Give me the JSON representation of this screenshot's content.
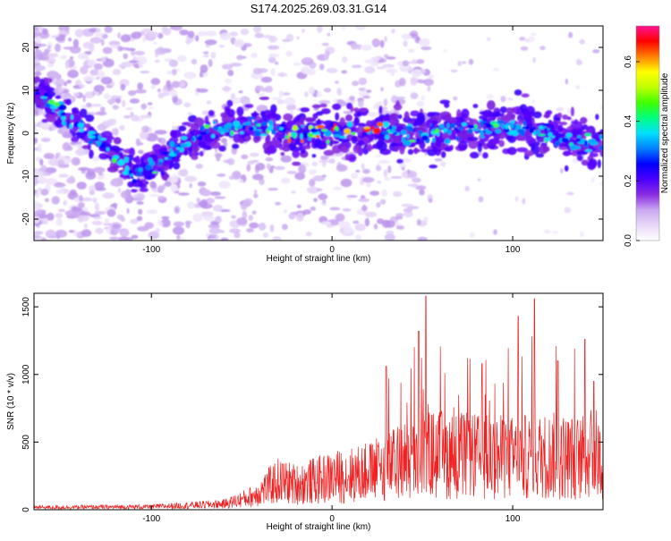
{
  "chart_data": [
    {
      "type": "heatmap",
      "title": "S174.2025.269.03.31.G14",
      "xlabel": "Height of straight line (km)",
      "ylabel": "Frequency (Hz)",
      "xlim": [
        -165,
        150
      ],
      "ylim": [
        -25,
        25
      ],
      "xticks": [
        -100,
        0,
        100
      ],
      "yticks": [
        -20,
        -10,
        0,
        10,
        20
      ],
      "colorbar": {
        "label": "Normalized spectral amplitude",
        "range": [
          0,
          0.72
        ],
        "ticks": [
          "0.0",
          "0.2",
          "0.4",
          "0.6"
        ],
        "colors": [
          "#ffffff",
          "#e8d8f8",
          "#c9a8f0",
          "#8a2be2",
          "#4b00ff",
          "#0000ff",
          "#0080ff",
          "#00e0ff",
          "#00ff80",
          "#40ff00",
          "#c0ff00",
          "#ffff00",
          "#ff8000",
          "#ff0000",
          "#ff1493"
        ]
      },
      "ridge": [
        {
          "x": -165,
          "y": 10
        },
        {
          "x": -150,
          "y": 5
        },
        {
          "x": -135,
          "y": 0
        },
        {
          "x": -120,
          "y": -5
        },
        {
          "x": -110,
          "y": -10
        },
        {
          "x": -100,
          "y": -8
        },
        {
          "x": -90,
          "y": -5
        },
        {
          "x": -80,
          "y": -2
        },
        {
          "x": -70,
          "y": 0
        },
        {
          "x": -55,
          "y": 2
        },
        {
          "x": -40,
          "y": 1
        },
        {
          "x": -20,
          "y": 0
        },
        {
          "x": 0,
          "y": 0
        },
        {
          "x": 20,
          "y": 1
        },
        {
          "x": 40,
          "y": 0
        },
        {
          "x": 60,
          "y": 0
        },
        {
          "x": 80,
          "y": 1
        },
        {
          "x": 100,
          "y": 2
        },
        {
          "x": 120,
          "y": 0
        },
        {
          "x": 140,
          "y": -2
        },
        {
          "x": 150,
          "y": -3
        }
      ]
    },
    {
      "type": "line",
      "xlabel": "Height of straight line (km)",
      "ylabel": "SNR (10 * v/v)",
      "xlim": [
        -165,
        150
      ],
      "ylim": [
        0,
        1600
      ],
      "xticks": [
        -100,
        0,
        100
      ],
      "yticks": [
        0,
        500,
        1000,
        1500
      ],
      "color": "#ee2222",
      "envelope": [
        {
          "x": -165,
          "y": 20
        },
        {
          "x": -100,
          "y": 25
        },
        {
          "x": -60,
          "y": 50
        },
        {
          "x": -45,
          "y": 110
        },
        {
          "x": -30,
          "y": 250
        },
        {
          "x": -20,
          "y": 220
        },
        {
          "x": 0,
          "y": 280
        },
        {
          "x": 20,
          "y": 320
        },
        {
          "x": 40,
          "y": 420
        },
        {
          "x": 55,
          "y": 480
        },
        {
          "x": 80,
          "y": 460
        },
        {
          "x": 100,
          "y": 450
        },
        {
          "x": 120,
          "y": 470
        },
        {
          "x": 150,
          "y": 440
        }
      ],
      "peaks": [
        {
          "x": 52,
          "y": 1580
        },
        {
          "x": 112,
          "y": 1560
        },
        {
          "x": 103,
          "y": 1430
        },
        {
          "x": 48,
          "y": 1320
        },
        {
          "x": 140,
          "y": 1260
        },
        {
          "x": 30,
          "y": 1060
        },
        {
          "x": 83,
          "y": 1080
        },
        {
          "x": 125,
          "y": 1100
        },
        {
          "x": 145,
          "y": 950
        }
      ]
    }
  ]
}
